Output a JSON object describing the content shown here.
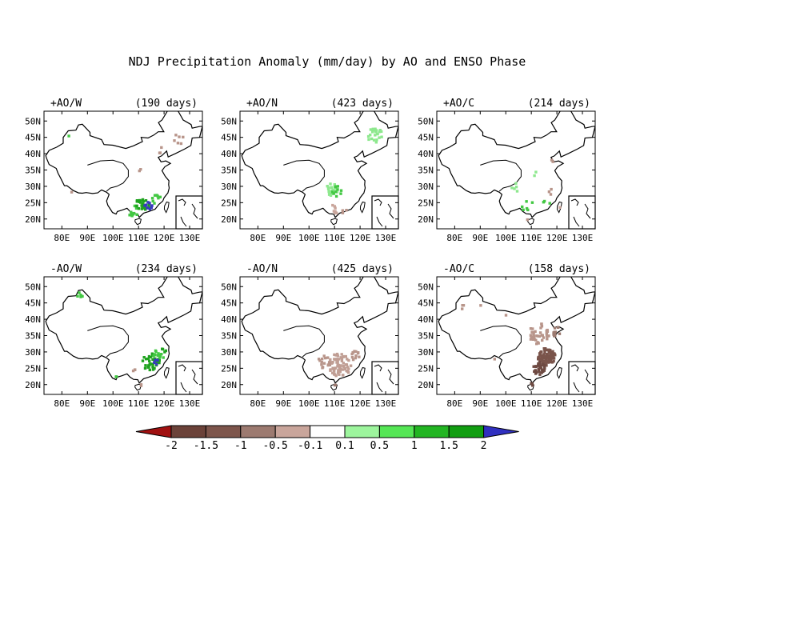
{
  "title": "NDJ Precipitation Anomaly (mm/day) by AO and ENSO Phase",
  "axes": {
    "lat_ticks": [
      "50N",
      "45N",
      "40N",
      "35N",
      "30N",
      "25N",
      "20N"
    ],
    "lon_ticks": [
      "80E",
      "90E",
      "100E",
      "110E",
      "120E",
      "130E"
    ],
    "lat_range": [
      17,
      53
    ],
    "lon_range": [
      73,
      135
    ],
    "tick_lat_values": [
      50,
      45,
      40,
      35,
      30,
      25,
      20
    ],
    "tick_lon_values": [
      80,
      90,
      100,
      110,
      120,
      130
    ]
  },
  "panels": [
    {
      "label": "+AO/W",
      "days": "(190 days)",
      "clusters": [
        {
          "lon": 108,
          "lat": 22.5,
          "spread": 2.2,
          "n": 12,
          "color": "#43c843"
        },
        {
          "lon": 112,
          "lat": 24.5,
          "spread": 3.0,
          "n": 26,
          "color": "#1fa31f"
        },
        {
          "lon": 114,
          "lat": 24.0,
          "spread": 1.6,
          "n": 10,
          "color": "#3838c0"
        },
        {
          "lon": 117,
          "lat": 26.0,
          "spread": 1.8,
          "n": 8,
          "color": "#43c843"
        },
        {
          "lon": 126,
          "lat": 45.0,
          "spread": 2.5,
          "n": 6,
          "color": "#b8958a"
        },
        {
          "lon": 119,
          "lat": 41.0,
          "spread": 1.5,
          "n": 3,
          "color": "#b8958a"
        },
        {
          "lon": 111,
          "lat": 35.5,
          "spread": 1.2,
          "n": 2,
          "color": "#b8958a"
        },
        {
          "lon": 83,
          "lat": 45.5,
          "spread": 0.6,
          "n": 1,
          "color": "#43c843"
        },
        {
          "lon": 84,
          "lat": 28.5,
          "spread": 0.6,
          "n": 1,
          "color": "#b8958a"
        }
      ]
    },
    {
      "label": "+AO/N",
      "days": "(423 days)",
      "clusters": [
        {
          "lon": 126,
          "lat": 45.5,
          "spread": 3.0,
          "n": 24,
          "color": "#8ee88e"
        },
        {
          "lon": 109,
          "lat": 29.0,
          "spread": 2.3,
          "n": 22,
          "color": "#8ee88e"
        },
        {
          "lon": 111,
          "lat": 28.5,
          "spread": 2.0,
          "n": 10,
          "color": "#43c843"
        },
        {
          "lon": 110,
          "lat": 23.0,
          "spread": 1.8,
          "n": 8,
          "color": "#c9a59b"
        },
        {
          "lon": 114,
          "lat": 22.5,
          "spread": 1.2,
          "n": 3,
          "color": "#b8958a"
        }
      ]
    },
    {
      "label": "+AO/C",
      "days": "(214 days)",
      "clusters": [
        {
          "lon": 104,
          "lat": 29.5,
          "spread": 2.0,
          "n": 5,
          "color": "#8ee88e"
        },
        {
          "lon": 112,
          "lat": 34.0,
          "spread": 1.5,
          "n": 2,
          "color": "#8ee88e"
        },
        {
          "lon": 108,
          "lat": 24.5,
          "spread": 2.5,
          "n": 6,
          "color": "#43c843"
        },
        {
          "lon": 116,
          "lat": 25.0,
          "spread": 1.5,
          "n": 3,
          "color": "#43c843"
        },
        {
          "lon": 118,
          "lat": 28.5,
          "spread": 1.5,
          "n": 3,
          "color": "#b8958a"
        },
        {
          "lon": 121,
          "lat": 23.5,
          "spread": 0.5,
          "n": 1,
          "color": "#c9a59b"
        },
        {
          "lon": 118,
          "lat": 38.0,
          "spread": 1.0,
          "n": 2,
          "color": "#b8958a"
        },
        {
          "lon": 108,
          "lat": 19.5,
          "spread": 0.6,
          "n": 1,
          "color": "#b8958a"
        }
      ]
    },
    {
      "label": "-AO/W",
      "days": "(234 days)",
      "clusters": [
        {
          "lon": 115,
          "lat": 27.0,
          "spread": 3.5,
          "n": 38,
          "color": "#1fa31f"
        },
        {
          "lon": 118,
          "lat": 29.0,
          "spread": 2.2,
          "n": 12,
          "color": "#43c843"
        },
        {
          "lon": 117,
          "lat": 27.0,
          "spread": 1.0,
          "n": 5,
          "color": "#3838c0"
        },
        {
          "lon": 120,
          "lat": 30.5,
          "spread": 1.0,
          "n": 4,
          "color": "#1fa31f"
        },
        {
          "lon": 87,
          "lat": 47.5,
          "spread": 1.2,
          "n": 5,
          "color": "#43c843"
        },
        {
          "lon": 108,
          "lat": 24.0,
          "spread": 1.0,
          "n": 3,
          "color": "#b8958a"
        },
        {
          "lon": 111,
          "lat": 20.0,
          "spread": 0.8,
          "n": 2,
          "color": "#b8958a"
        },
        {
          "lon": 101,
          "lat": 22.5,
          "spread": 0.6,
          "n": 2,
          "color": "#43c843"
        }
      ]
    },
    {
      "label": "-AO/N",
      "days": "(425 days)",
      "clusters": [
        {
          "lon": 112,
          "lat": 26.0,
          "spread": 4.5,
          "n": 70,
          "color": "#c09e94"
        },
        {
          "lon": 106,
          "lat": 27.0,
          "spread": 2.5,
          "n": 16,
          "color": "#b8958a"
        },
        {
          "lon": 118,
          "lat": 29.0,
          "spread": 2.0,
          "n": 12,
          "color": "#b8958a"
        },
        {
          "lon": 110,
          "lat": 20.0,
          "spread": 0.8,
          "n": 2,
          "color": "#9c7a70"
        }
      ]
    },
    {
      "label": "-AO/C",
      "days": "(158 days)",
      "clusters": [
        {
          "lon": 116,
          "lat": 28.5,
          "spread": 3.5,
          "n": 90,
          "color": "#7a544b"
        },
        {
          "lon": 113,
          "lat": 25.0,
          "spread": 2.5,
          "n": 30,
          "color": "#6e4a42"
        },
        {
          "lon": 113,
          "lat": 35.5,
          "spread": 4.0,
          "n": 40,
          "color": "#b8958a"
        },
        {
          "lon": 120,
          "lat": 36.0,
          "spread": 2.0,
          "n": 10,
          "color": "#9c7a70"
        },
        {
          "lon": 84,
          "lat": 43.5,
          "spread": 1.5,
          "n": 3,
          "color": "#b8958a"
        },
        {
          "lon": 90,
          "lat": 44.5,
          "spread": 0.5,
          "n": 1,
          "color": "#b8958a"
        },
        {
          "lon": 100,
          "lat": 41.5,
          "spread": 0.5,
          "n": 1,
          "color": "#b8958a"
        },
        {
          "lon": 96,
          "lat": 28.0,
          "spread": 0.5,
          "n": 1,
          "color": "#b8958a"
        },
        {
          "lon": 110,
          "lat": 20.0,
          "spread": 0.8,
          "n": 3,
          "color": "#6e4a42"
        }
      ]
    }
  ],
  "colorbar": {
    "left_arrow_color": "#a01010",
    "right_arrow_color": "#3030c0",
    "segments": [
      "#6b4239",
      "#7d554b",
      "#9c7a70",
      "#c9a59b",
      "#ffffff",
      "#9df59d",
      "#55e655",
      "#22b522",
      "#119e11"
    ],
    "labels": [
      "-2",
      "-1.5",
      "-1",
      "-0.5",
      "-0.1",
      "0.1",
      "0.5",
      "1",
      "1.5",
      "2"
    ]
  },
  "china_outline": [
    [
      73.7,
      39.4
    ],
    [
      75.0,
      41.0
    ],
    [
      78.0,
      42.0
    ],
    [
      80.5,
      43.2
    ],
    [
      80.5,
      45.0
    ],
    [
      82.5,
      47.0
    ],
    [
      85.5,
      47.2
    ],
    [
      86.5,
      48.8
    ],
    [
      88.0,
      49.0
    ],
    [
      91.0,
      46.5
    ],
    [
      91.0,
      45.5
    ],
    [
      95.5,
      44.3
    ],
    [
      96.5,
      42.8
    ],
    [
      100.0,
      42.6
    ],
    [
      105.0,
      41.6
    ],
    [
      108.0,
      42.4
    ],
    [
      111.5,
      43.7
    ],
    [
      111.0,
      45.0
    ],
    [
      113.7,
      44.8
    ],
    [
      116.0,
      45.7
    ],
    [
      117.7,
      46.7
    ],
    [
      119.9,
      46.7
    ],
    [
      117.8,
      49.5
    ],
    [
      119.2,
      50.3
    ],
    [
      121.5,
      53.3
    ],
    [
      125.5,
      53.0
    ],
    [
      127.5,
      50.3
    ],
    [
      130.6,
      48.9
    ],
    [
      131.0,
      47.8
    ],
    [
      133.8,
      48.3
    ],
    [
      135.0,
      48.4
    ],
    [
      133.9,
      45.0
    ],
    [
      131.0,
      44.8
    ],
    [
      130.5,
      42.5
    ],
    [
      128.0,
      41.4
    ],
    [
      124.4,
      40.0
    ],
    [
      121.6,
      39.0
    ],
    [
      121.0,
      40.8
    ],
    [
      119.0,
      39.3
    ],
    [
      117.7,
      38.9
    ],
    [
      118.8,
      37.5
    ],
    [
      120.7,
      37.8
    ],
    [
      122.5,
      37.0
    ],
    [
      120.3,
      36.0
    ],
    [
      119.2,
      34.8
    ],
    [
      120.5,
      33.0
    ],
    [
      121.9,
      31.7
    ],
    [
      121.8,
      30.5
    ],
    [
      122.0,
      29.5
    ],
    [
      121.5,
      28.0
    ],
    [
      120.0,
      26.5
    ],
    [
      119.5,
      25.5
    ],
    [
      118.0,
      24.5
    ],
    [
      116.5,
      23.0
    ],
    [
      114.0,
      22.3
    ],
    [
      112.0,
      21.8
    ],
    [
      110.3,
      20.5
    ],
    [
      109.7,
      21.5
    ],
    [
      108.0,
      21.6
    ],
    [
      106.7,
      22.3
    ],
    [
      105.5,
      23.3
    ],
    [
      103.5,
      22.7
    ],
    [
      101.7,
      22.3
    ],
    [
      101.2,
      21.5
    ],
    [
      99.8,
      22.0
    ],
    [
      99.0,
      23.0
    ],
    [
      98.0,
      24.2
    ],
    [
      97.5,
      25.5
    ],
    [
      98.5,
      27.5
    ],
    [
      97.5,
      28.2
    ],
    [
      95.5,
      28.9
    ],
    [
      94.0,
      28.0
    ],
    [
      92.0,
      27.8
    ],
    [
      89.5,
      28.1
    ],
    [
      88.0,
      27.9
    ],
    [
      86.5,
      28.0
    ],
    [
      84.5,
      28.7
    ],
    [
      82.0,
      30.2
    ],
    [
      81.0,
      30.2
    ],
    [
      79.5,
      32.5
    ],
    [
      78.5,
      34.0
    ],
    [
      77.8,
      35.5
    ],
    [
      75.0,
      36.7
    ],
    [
      74.0,
      38.6
    ],
    [
      73.7,
      39.4
    ]
  ],
  "hainan_outline": [
    [
      108.6,
      19.2
    ],
    [
      109.5,
      18.3
    ],
    [
      110.6,
      18.7
    ],
    [
      111.0,
      19.9
    ],
    [
      110.2,
      20.1
    ],
    [
      108.7,
      19.8
    ],
    [
      108.6,
      19.2
    ]
  ],
  "taiwan_outline": [
    [
      120.1,
      23.0
    ],
    [
      120.8,
      22.0
    ],
    [
      121.6,
      23.5
    ],
    [
      121.9,
      25.0
    ],
    [
      121.0,
      25.2
    ],
    [
      120.2,
      24.0
    ],
    [
      120.1,
      23.0
    ]
  ],
  "basin_outline": [
    [
      90.0,
      36.5
    ],
    [
      95.0,
      37.8
    ],
    [
      100.0,
      38.0
    ],
    [
      104.0,
      37.0
    ],
    [
      106.0,
      35.0
    ],
    [
      106.0,
      33.0
    ],
    [
      104.0,
      31.0
    ],
    [
      101.5,
      30.0
    ],
    [
      99.0,
      29.5
    ],
    [
      97.5,
      28.5
    ]
  ]
}
